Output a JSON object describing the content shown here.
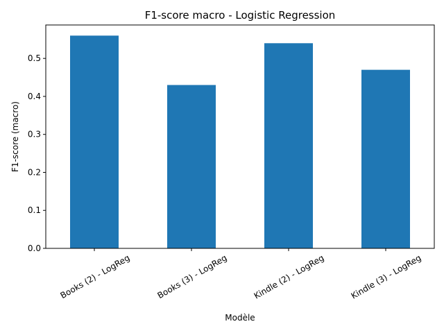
{
  "chart_data": {
    "type": "bar",
    "title": "F1-score macro - Logistic Regression",
    "xlabel": "Modèle",
    "ylabel": "F1-score (macro)",
    "categories": [
      "Books (2) - LogReg",
      "Books (3) - LogReg",
      "Kindle (2) - LogReg",
      "Kindle (3) - LogReg"
    ],
    "values": [
      0.56,
      0.43,
      0.54,
      0.47
    ],
    "yticks": [
      0.0,
      0.1,
      0.2,
      0.3,
      0.4,
      0.5
    ],
    "ytick_labels": [
      "0.0",
      "0.1",
      "0.2",
      "0.3",
      "0.4",
      "0.5"
    ],
    "ylim": [
      0,
      0.588
    ],
    "grid": false,
    "bar_color": "#1f77b4"
  }
}
